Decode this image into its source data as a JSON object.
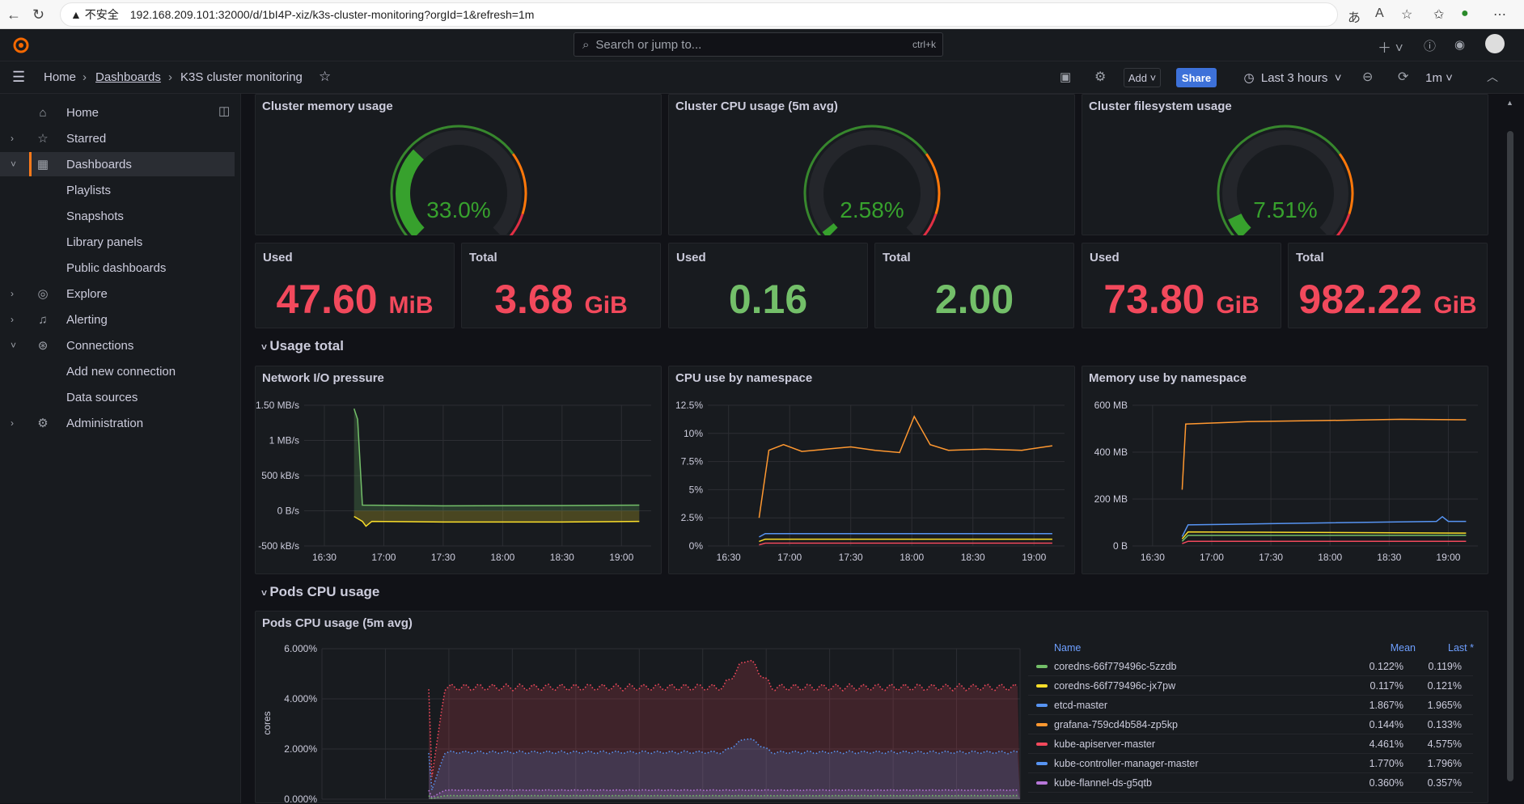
{
  "browser": {
    "insecure_label": "不安全",
    "url": "192.168.209.101:32000/d/1bI4P-xiz/k3s-cluster-monitoring?orgId=1&refresh=1m"
  },
  "topbar": {
    "search_placeholder": "Search or jump to...",
    "search_shortcut": "ctrl+k"
  },
  "breadcrumb": {
    "home": "Home",
    "dashboards": "Dashboards",
    "current": "K3S cluster monitoring"
  },
  "toolbar": {
    "add_label": "Add",
    "share_label": "Share",
    "time_range": "Last 3 hours",
    "refresh_interval": "1m"
  },
  "sidebar": {
    "items": [
      {
        "label": "Home",
        "icon": "home-icon"
      },
      {
        "label": "Starred",
        "icon": "star-icon"
      },
      {
        "label": "Dashboards",
        "icon": "grid-icon"
      },
      {
        "label": "Playlists"
      },
      {
        "label": "Snapshots"
      },
      {
        "label": "Library panels"
      },
      {
        "label": "Public dashboards"
      },
      {
        "label": "Explore",
        "icon": "compass-icon"
      },
      {
        "label": "Alerting",
        "icon": "bell-icon"
      },
      {
        "label": "Connections",
        "icon": "plug-icon"
      },
      {
        "label": "Add new connection"
      },
      {
        "label": "Data sources"
      },
      {
        "label": "Administration",
        "icon": "gear-icon"
      }
    ]
  },
  "gauges": [
    {
      "title": "Cluster memory usage",
      "value": "33.0%",
      "fraction": 0.33
    },
    {
      "title": "Cluster CPU usage (5m avg)",
      "value": "2.58%",
      "fraction": 0.0258
    },
    {
      "title": "Cluster filesystem usage",
      "value": "7.51%",
      "fraction": 0.0751
    }
  ],
  "stats": [
    {
      "label": "Used",
      "value": "47.60",
      "unit": "MiB",
      "color": "#f2495c"
    },
    {
      "label": "Total",
      "value": "3.68",
      "unit": "GiB",
      "color": "#f2495c"
    },
    {
      "label": "Used",
      "value": "0.16",
      "unit": "",
      "color": "#73bf69"
    },
    {
      "label": "Total",
      "value": "2.00",
      "unit": "",
      "color": "#73bf69"
    },
    {
      "label": "Used",
      "value": "73.80",
      "unit": "GiB",
      "color": "#f2495c"
    },
    {
      "label": "Total",
      "value": "982.22",
      "unit": "GiB",
      "color": "#f2495c"
    }
  ],
  "rows": {
    "usage_total": "Usage total",
    "pods_cpu": "Pods CPU usage"
  },
  "timeseries_titles": {
    "network": "Network I/O pressure",
    "cpu_ns": "CPU use by namespace",
    "mem_ns": "Memory use by namespace",
    "pods_cpu": "Pods CPU usage (5m avg)"
  },
  "chart_data": [
    {
      "type": "area",
      "title": "Network I/O pressure",
      "x": [
        "16:30",
        "17:00",
        "17:30",
        "18:00",
        "18:30",
        "19:00"
      ],
      "y_ticks": [
        "1.50 MB/s",
        "1 MB/s",
        "500 kB/s",
        "0 B/s",
        "-500 kB/s"
      ],
      "ylim": [
        -500,
        1500
      ],
      "series": [
        {
          "color": "#73bf69",
          "points": [
            [
              16.75,
              1450
            ],
            [
              16.78,
              1300
            ],
            [
              16.82,
              80
            ],
            [
              17.5,
              70
            ],
            [
              18.5,
              75
            ],
            [
              19.15,
              80
            ]
          ]
        },
        {
          "color": "#fade2a",
          "points": [
            [
              16.75,
              -80
            ],
            [
              16.82,
              -150
            ],
            [
              16.85,
              -220
            ],
            [
              16.9,
              -150
            ],
            [
              17.5,
              -160
            ],
            [
              18.5,
              -160
            ],
            [
              19.15,
              -150
            ]
          ]
        }
      ]
    },
    {
      "type": "line",
      "title": "CPU use by namespace",
      "x": [
        "16:30",
        "17:00",
        "17:30",
        "18:00",
        "18:30",
        "19:00"
      ],
      "y_ticks": [
        "12.5%",
        "10%",
        "7.5%",
        "5%",
        "2.5%",
        "0%"
      ],
      "ylim": [
        0,
        12.5
      ],
      "series": [
        {
          "color": "#ff9830",
          "points": [
            [
              16.75,
              2.5
            ],
            [
              16.83,
              8.5
            ],
            [
              16.95,
              9.0
            ],
            [
              17.1,
              8.4
            ],
            [
              17.3,
              8.6
            ],
            [
              17.5,
              8.8
            ],
            [
              17.7,
              8.5
            ],
            [
              17.9,
              8.3
            ],
            [
              18.02,
              11.5
            ],
            [
              18.15,
              9.0
            ],
            [
              18.3,
              8.5
            ],
            [
              18.6,
              8.6
            ],
            [
              18.9,
              8.5
            ],
            [
              19.15,
              8.9
            ]
          ]
        },
        {
          "color": "#5794f2",
          "points": [
            [
              16.75,
              0.8
            ],
            [
              16.8,
              1.1
            ],
            [
              19.15,
              1.1
            ]
          ]
        },
        {
          "color": "#fade2a",
          "points": [
            [
              16.75,
              0.4
            ],
            [
              16.8,
              0.6
            ],
            [
              19.15,
              0.6
            ]
          ]
        },
        {
          "color": "#f2495c",
          "points": [
            [
              16.75,
              0.1
            ],
            [
              16.8,
              0.25
            ],
            [
              19.15,
              0.25
            ]
          ]
        }
      ]
    },
    {
      "type": "line",
      "title": "Memory use by namespace",
      "x": [
        "16:30",
        "17:00",
        "17:30",
        "18:00",
        "18:30",
        "19:00"
      ],
      "y_ticks": [
        "600 MB",
        "400 MB",
        "200 MB",
        "0 B"
      ],
      "ylim": [
        0,
        600
      ],
      "series": [
        {
          "color": "#ff9830",
          "points": [
            [
              16.75,
              240
            ],
            [
              16.78,
              520
            ],
            [
              17.3,
              530
            ],
            [
              18.0,
              535
            ],
            [
              18.6,
              540
            ],
            [
              19.15,
              538
            ]
          ]
        },
        {
          "color": "#5794f2",
          "points": [
            [
              16.75,
              40
            ],
            [
              16.8,
              90
            ],
            [
              17.5,
              95
            ],
            [
              18.9,
              105
            ],
            [
              18.95,
              125
            ],
            [
              19.0,
              105
            ],
            [
              19.15,
              105
            ]
          ]
        },
        {
          "color": "#fade2a",
          "points": [
            [
              16.75,
              30
            ],
            [
              16.8,
              60
            ],
            [
              19.15,
              55
            ]
          ]
        },
        {
          "color": "#73bf69",
          "points": [
            [
              16.75,
              20
            ],
            [
              16.8,
              45
            ],
            [
              19.15,
              45
            ]
          ]
        },
        {
          "color": "#f2495c",
          "points": [
            [
              16.75,
              10
            ],
            [
              16.8,
              20
            ],
            [
              19.15,
              20
            ]
          ]
        }
      ]
    },
    {
      "type": "area",
      "title": "Pods CPU usage (5m avg)",
      "ylabel": "cores",
      "y_ticks": [
        "6.000%",
        "4.000%",
        "2.000%",
        "0.000%"
      ],
      "ylim": [
        0,
        6
      ],
      "series": [
        {
          "name": "coredns-66f779496c-5zzdb",
          "color": "#73bf69",
          "mean": "0.122%",
          "last": "0.119%"
        },
        {
          "name": "coredns-66f779496c-jx7pw",
          "color": "#fade2a",
          "mean": "0.117%",
          "last": "0.121%"
        },
        {
          "name": "etcd-master",
          "color": "#5794f2",
          "mean": "1.867%",
          "last": "1.965%"
        },
        {
          "name": "grafana-759cd4b584-zp5kp",
          "color": "#ff9830",
          "mean": "0.144%",
          "last": "0.133%"
        },
        {
          "name": "kube-apiserver-master",
          "color": "#f2495c",
          "mean": "4.461%",
          "last": "4.575%"
        },
        {
          "name": "kube-controller-manager-master",
          "color": "#5794f2",
          "mean": "1.770%",
          "last": "1.796%"
        },
        {
          "name": "kube-flannel-ds-g5qtb",
          "color": "#b877d9",
          "mean": "0.360%",
          "last": "0.357%"
        }
      ],
      "legend_headers": {
        "name": "Name",
        "mean": "Mean",
        "last": "Last *"
      }
    }
  ]
}
